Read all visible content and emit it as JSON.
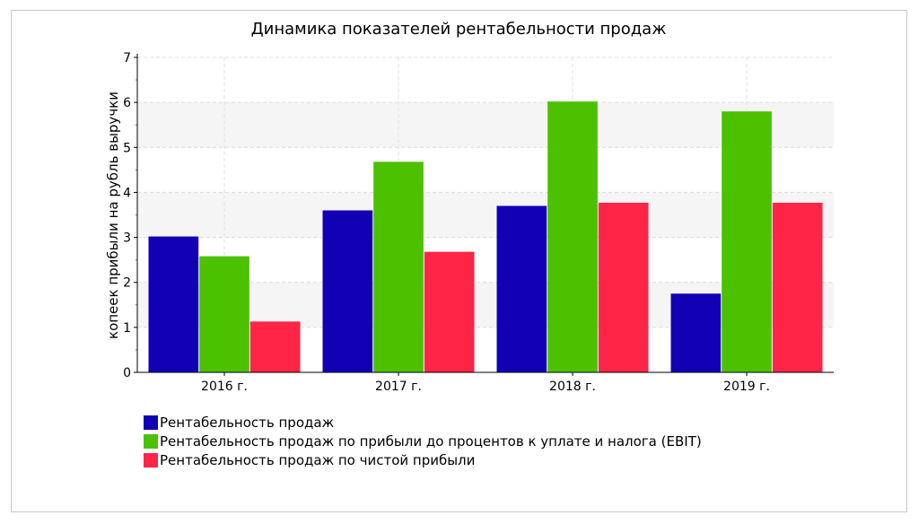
{
  "chart_data": {
    "type": "bar",
    "title": "Динамика показателей рентабельности продаж",
    "xlabel": "",
    "ylabel": "копеек прибыли на рубль выручки",
    "categories": [
      "2016 г.",
      "2017 г.",
      "2018 г.",
      "2019 г."
    ],
    "ylim": [
      0,
      7
    ],
    "yticks": [
      0,
      1,
      2,
      3,
      4,
      5,
      6,
      7
    ],
    "grid": true,
    "legend_position": "bottom-left",
    "series": [
      {
        "name": "Рентабельность продаж",
        "color": "#1100b4",
        "values": [
          3.02,
          3.6,
          3.7,
          1.75
        ]
      },
      {
        "name": "Рентабельность продаж по прибыли до процентов к уплате и налога (EBIT)",
        "color": "#4cc100",
        "values": [
          2.58,
          4.68,
          6.02,
          5.8
        ]
      },
      {
        "name": "Рентабельность продаж по чистой прибыли",
        "color": "#ff2547",
        "values": [
          1.13,
          2.68,
          3.77,
          3.77
        ]
      }
    ]
  }
}
